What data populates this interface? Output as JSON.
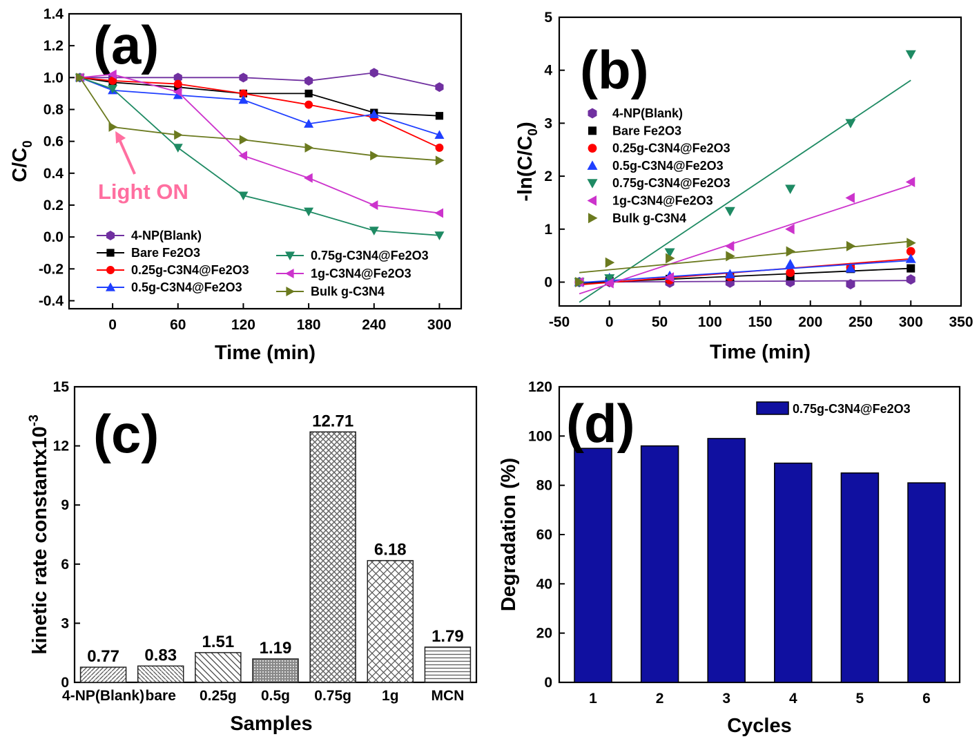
{
  "chart_data": [
    {
      "id": "a",
      "type": "line",
      "panel_label": "(a)",
      "xlabel": "Time (min)",
      "ylabel": "C/C",
      "ylabel_sub": "0",
      "xticks": [
        0,
        60,
        120,
        180,
        240,
        300
      ],
      "yticks": [
        -0.4,
        -0.2,
        0.0,
        0.2,
        0.4,
        0.6,
        0.8,
        1.0,
        1.2,
        1.4
      ],
      "xlim": [
        -40,
        320
      ],
      "ylim": [
        -0.45,
        1.4
      ],
      "annotation": {
        "text": "Light ON",
        "x": 0,
        "y": 0.69
      },
      "legend_placement": "bottom-left",
      "series": [
        {
          "name": "4-NP(Blank)",
          "color": "#7030a0",
          "marker": "hexagon",
          "x": [
            -30,
            0,
            60,
            120,
            180,
            240,
            300
          ],
          "y": [
            1.0,
            1.0,
            1.0,
            1.0,
            0.98,
            1.03,
            0.94
          ]
        },
        {
          "name": "Bare Fe2O3",
          "color": "#000000",
          "marker": "square",
          "x": [
            -30,
            0,
            60,
            120,
            180,
            240,
            300
          ],
          "y": [
            1.0,
            0.97,
            0.94,
            0.9,
            0.9,
            0.78,
            0.76
          ]
        },
        {
          "name": "0.25g-C3N4@Fe2O3",
          "color": "#ff0000",
          "marker": "circle",
          "x": [
            -30,
            0,
            60,
            120,
            180,
            240,
            300
          ],
          "y": [
            1.0,
            0.98,
            0.96,
            0.9,
            0.83,
            0.75,
            0.56
          ]
        },
        {
          "name": "0.5g-C3N4@Fe2O3",
          "color": "#1f3fff",
          "marker": "triangle-up",
          "x": [
            -30,
            0,
            60,
            120,
            180,
            240,
            300
          ],
          "y": [
            1.0,
            0.92,
            0.89,
            0.86,
            0.71,
            0.77,
            0.64
          ]
        },
        {
          "name": "0.75g-C3N4@Fe2O3",
          "color": "#1e8a63",
          "marker": "triangle-down",
          "x": [
            -30,
            0,
            60,
            120,
            180,
            240,
            300
          ],
          "y": [
            1.0,
            0.93,
            0.56,
            0.26,
            0.16,
            0.04,
            0.01
          ]
        },
        {
          "name": "1g-C3N4@Fe2O3",
          "color": "#cc33cc",
          "marker": "triangle-left",
          "x": [
            -30,
            0,
            60,
            120,
            180,
            240,
            300
          ],
          "y": [
            1.0,
            1.02,
            0.91,
            0.51,
            0.37,
            0.2,
            0.15
          ]
        },
        {
          "name": "Bulk g-C3N4",
          "color": "#6b7a1f",
          "marker": "triangle-right",
          "x": [
            -30,
            0,
            60,
            120,
            180,
            240,
            300
          ],
          "y": [
            1.0,
            0.69,
            0.64,
            0.61,
            0.56,
            0.51,
            0.48
          ]
        }
      ]
    },
    {
      "id": "b",
      "type": "scatter",
      "panel_label": "(b)",
      "xlabel": "Time (min)",
      "ylabel": "-ln(C/C",
      "ylabel_sub": "0",
      "ylabel_end": ")",
      "xticks": [
        -50,
        0,
        50,
        100,
        150,
        200,
        250,
        300,
        350
      ],
      "yticks": [
        0,
        1,
        2,
        3,
        4,
        5
      ],
      "xlim": [
        -50,
        350
      ],
      "ylim": [
        -0.45,
        5
      ],
      "legend_placement": "left",
      "series": [
        {
          "name": "4-NP(Blank)",
          "color": "#7030a0",
          "marker": "hexagon",
          "x": [
            -30,
            0,
            60,
            120,
            180,
            240,
            300
          ],
          "y": [
            0.0,
            0.0,
            -0.01,
            -0.01,
            0.0,
            -0.04,
            0.05
          ],
          "fit": [
            [
              -30,
              0.0
            ],
            [
              300,
              0.03
            ]
          ]
        },
        {
          "name": "Bare Fe2O3",
          "color": "#000000",
          "marker": "square",
          "x": [
            -30,
            0,
            60,
            120,
            180,
            240,
            300
          ],
          "y": [
            0.0,
            0.02,
            0.06,
            0.1,
            0.11,
            0.25,
            0.26
          ],
          "fit": [
            [
              -30,
              -0.02
            ],
            [
              300,
              0.26
            ]
          ]
        },
        {
          "name": "0.25g-C3N4@Fe2O3",
          "color": "#ff0000",
          "marker": "circle",
          "x": [
            -30,
            0,
            60,
            120,
            180,
            240,
            300
          ],
          "y": [
            0.0,
            0.01,
            0.04,
            0.1,
            0.18,
            0.28,
            0.58
          ],
          "fit": [
            [
              -30,
              -0.05
            ],
            [
              300,
              0.44
            ]
          ]
        },
        {
          "name": "0.5g-C3N4@Fe2O3",
          "color": "#1f3fff",
          "marker": "triangle-up",
          "x": [
            -30,
            0,
            60,
            120,
            180,
            240,
            300
          ],
          "y": [
            0.0,
            0.08,
            0.12,
            0.15,
            0.34,
            0.26,
            0.44
          ],
          "fit": [
            [
              -30,
              -0.01
            ],
            [
              300,
              0.41
            ]
          ]
        },
        {
          "name": "0.75g-C3N4@Fe2O3",
          "color": "#1e8a63",
          "marker": "triangle-down",
          "x": [
            -30,
            0,
            60,
            120,
            180,
            240,
            300
          ],
          "y": [
            0.0,
            0.07,
            0.56,
            1.34,
            1.76,
            3.0,
            4.3
          ],
          "fit": [
            [
              -30,
              -0.38
            ],
            [
              300,
              3.81
            ]
          ]
        },
        {
          "name": "1g-C3N4@Fe2O3",
          "color": "#cc33cc",
          "marker": "triangle-left",
          "x": [
            -30,
            0,
            60,
            120,
            180,
            240,
            300
          ],
          "y": [
            0.0,
            -0.02,
            0.09,
            0.68,
            1.0,
            1.59,
            1.89
          ],
          "fit": [
            [
              -30,
              -0.22
            ],
            [
              300,
              1.83
            ]
          ]
        },
        {
          "name": "Bulk g-C3N4",
          "color": "#6b7a1f",
          "marker": "triangle-right",
          "x": [
            -30,
            0,
            60,
            120,
            180,
            240,
            300
          ],
          "y": [
            0.0,
            0.37,
            0.45,
            0.49,
            0.58,
            0.68,
            0.74
          ],
          "fit": [
            [
              -30,
              0.18
            ],
            [
              300,
              0.77
            ]
          ]
        }
      ]
    },
    {
      "id": "c",
      "type": "bar",
      "panel_label": "(c)",
      "xlabel": "Samples",
      "ylabel": "kinetic rate constantx10",
      "ylabel_sup": "-3",
      "categories": [
        "4-NP(Blank)",
        "bare",
        "0.25g",
        "0.5g",
        "0.75g",
        "1g",
        "MCN"
      ],
      "values": [
        0.77,
        0.83,
        1.51,
        1.19,
        12.71,
        6.18,
        1.79
      ],
      "value_labels": [
        "0.77",
        "0.83",
        "1.51",
        "1.19",
        "12.71",
        "6.18",
        "1.79"
      ],
      "yticks": [
        0,
        3,
        6,
        9,
        12,
        15
      ],
      "ylim": [
        0,
        15
      ]
    },
    {
      "id": "d",
      "type": "bar",
      "panel_label": "(d)",
      "xlabel": "Cycles",
      "ylabel": "Degradation (%)",
      "categories": [
        "1",
        "2",
        "3",
        "4",
        "5",
        "6"
      ],
      "series": [
        {
          "name": "0.75g-C3N4@Fe2O3",
          "color": "#1010a0",
          "values": [
            95,
            96,
            99,
            89,
            85,
            81
          ]
        }
      ],
      "yticks": [
        0,
        20,
        40,
        60,
        80,
        100,
        120
      ],
      "ylim": [
        0,
        120
      ],
      "legend_placement": "top-right"
    }
  ]
}
